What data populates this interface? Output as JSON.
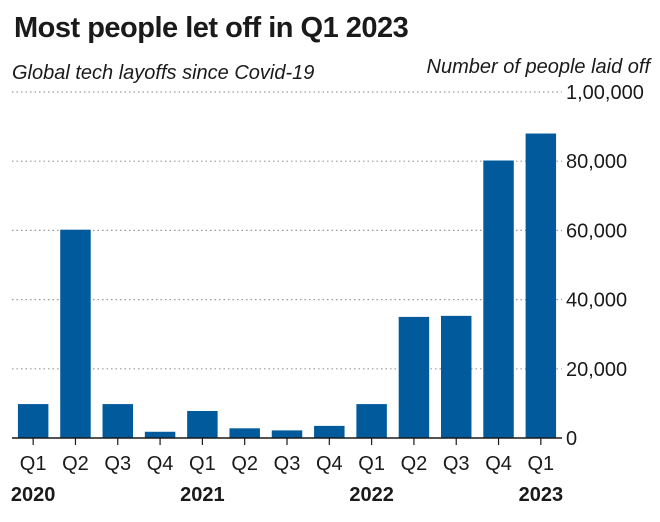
{
  "chart_data": {
    "type": "bar",
    "title": "Most people let off in Q1 2023",
    "subtitle": "Global tech layoffs since Covid-19",
    "ylabel": "Number of people laid off",
    "xlabel": "",
    "categories": [
      "Q1",
      "Q2",
      "Q3",
      "Q4",
      "Q1",
      "Q2",
      "Q3",
      "Q4",
      "Q1",
      "Q2",
      "Q3",
      "Q4",
      "Q1"
    ],
    "years": [
      {
        "label": "2020",
        "index": 0
      },
      {
        "label": "2021",
        "index": 4
      },
      {
        "label": "2022",
        "index": 8
      },
      {
        "label": "2023",
        "index": 12
      }
    ],
    "values": [
      9800,
      60200,
      9800,
      1800,
      7800,
      2800,
      2200,
      3500,
      9800,
      35000,
      35300,
      80200,
      88000
    ],
    "ylim": [
      0,
      100000
    ],
    "yticks": [
      0,
      20000,
      40000,
      60000,
      80000,
      100000
    ],
    "ytick_labels": [
      "0",
      "20,000",
      "40,000",
      "60,000",
      "80,000",
      "1,00,000"
    ],
    "bar_color": "#005a9c",
    "grid": true
  }
}
